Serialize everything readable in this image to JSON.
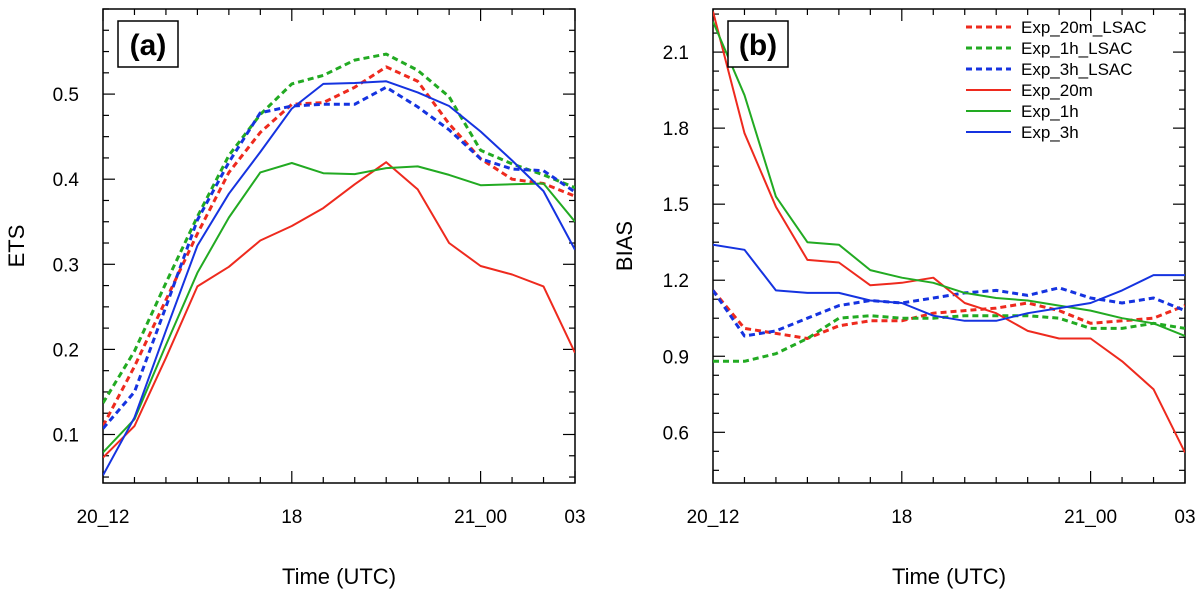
{
  "chart_data": [
    {
      "type": "line",
      "panel_label": "(a)",
      "xlabel": "Time (UTC)",
      "ylabel": "ETS",
      "x_tick_labels": [
        "20_12",
        "18",
        "21_00",
        "03"
      ],
      "x": [
        0,
        1,
        2,
        3,
        4,
        5,
        6,
        7,
        8,
        9,
        10,
        11,
        12,
        13,
        14,
        15
      ],
      "xlim": [
        0,
        15
      ],
      "ylim": [
        0.043,
        0.6
      ],
      "yticks": [
        0.1,
        0.2,
        0.3,
        0.4,
        0.5
      ],
      "y_tick_labels": [
        "0.1",
        "0.2",
        "0.3",
        "0.4",
        "0.5"
      ],
      "series": [
        {
          "name": "Exp_20m_LSAC",
          "color": "#ee2a1e",
          "dash": true,
          "values": [
            0.11,
            0.18,
            0.258,
            0.336,
            0.408,
            0.455,
            0.488,
            0.49,
            0.508,
            0.532,
            0.515,
            0.465,
            0.424,
            0.4,
            0.395,
            0.38
          ]
        },
        {
          "name": "Exp_1h_LSAC",
          "color": "#22aa22",
          "dash": true,
          "values": [
            0.137,
            0.198,
            0.278,
            0.356,
            0.428,
            0.476,
            0.512,
            0.522,
            0.54,
            0.547,
            0.528,
            0.497,
            0.434,
            0.418,
            0.405,
            0.39
          ]
        },
        {
          "name": "Exp_3h_LSAC",
          "color": "#1533e0",
          "dash": true,
          "values": [
            0.107,
            0.15,
            0.25,
            0.352,
            0.42,
            0.478,
            0.486,
            0.488,
            0.488,
            0.508,
            0.485,
            0.458,
            0.424,
            0.412,
            0.41,
            0.385
          ]
        },
        {
          "name": "Exp_20m",
          "color": "#ee2a1e",
          "dash": false,
          "values": [
            0.073,
            0.11,
            0.19,
            0.274,
            0.297,
            0.328,
            0.345,
            0.366,
            0.394,
            0.42,
            0.388,
            0.325,
            0.298,
            0.288,
            0.274,
            0.196
          ]
        },
        {
          "name": "Exp_1h",
          "color": "#22aa22",
          "dash": false,
          "values": [
            0.079,
            0.118,
            0.205,
            0.29,
            0.355,
            0.408,
            0.419,
            0.407,
            0.406,
            0.413,
            0.415,
            0.405,
            0.393,
            0.394,
            0.395,
            0.35
          ]
        },
        {
          "name": "Exp_3h",
          "color": "#1533e0",
          "dash": false,
          "values": [
            0.052,
            0.12,
            0.222,
            0.322,
            0.383,
            0.432,
            0.483,
            0.512,
            0.513,
            0.515,
            0.502,
            0.486,
            0.456,
            0.422,
            0.386,
            0.317
          ]
        }
      ]
    },
    {
      "type": "line",
      "panel_label": "(b)",
      "xlabel": "Time (UTC)",
      "ylabel": "BIAS",
      "x_tick_labels": [
        "20_12",
        "18",
        "21_00",
        "03"
      ],
      "x": [
        0,
        1,
        2,
        3,
        4,
        5,
        6,
        7,
        8,
        9,
        10,
        11,
        12,
        13,
        14,
        15
      ],
      "xlim": [
        0,
        15
      ],
      "ylim": [
        0.4,
        2.27
      ],
      "yticks": [
        0.6,
        0.9,
        1.2,
        1.5,
        1.8,
        2.1
      ],
      "y_tick_labels": [
        "0.6",
        "0.9",
        "1.2",
        "1.5",
        "1.8",
        "2.1"
      ],
      "legend": [
        "Exp_20m_LSAC",
        "Exp_1h_LSAC",
        "Exp_3h_LSAC",
        "Exp_20m",
        "Exp_1h",
        "Exp_3h"
      ],
      "legend_position": "top-right",
      "series": [
        {
          "name": "Exp_20m_LSAC",
          "color": "#ee2a1e",
          "dash": true,
          "values": [
            1.16,
            1.01,
            0.99,
            0.97,
            1.02,
            1.04,
            1.04,
            1.07,
            1.08,
            1.09,
            1.11,
            1.08,
            1.03,
            1.04,
            1.05,
            1.1
          ]
        },
        {
          "name": "Exp_1h_LSAC",
          "color": "#22aa22",
          "dash": true,
          "values": [
            0.88,
            0.88,
            0.91,
            0.97,
            1.05,
            1.06,
            1.05,
            1.05,
            1.06,
            1.06,
            1.06,
            1.05,
            1.01,
            1.01,
            1.03,
            1.01
          ]
        },
        {
          "name": "Exp_3h_LSAC",
          "color": "#1533e0",
          "dash": true,
          "values": [
            1.16,
            0.98,
            1.0,
            1.05,
            1.1,
            1.12,
            1.11,
            1.13,
            1.15,
            1.16,
            1.14,
            1.17,
            1.13,
            1.11,
            1.13,
            1.08
          ]
        },
        {
          "name": "Exp_20m",
          "color": "#ee2a1e",
          "dash": false,
          "values": [
            2.26,
            1.78,
            1.49,
            1.28,
            1.27,
            1.18,
            1.19,
            1.21,
            1.11,
            1.07,
            1.0,
            0.97,
            0.97,
            0.88,
            0.77,
            0.52
          ]
        },
        {
          "name": "Exp_1h",
          "color": "#22aa22",
          "dash": false,
          "values": [
            2.22,
            1.93,
            1.53,
            1.35,
            1.34,
            1.24,
            1.21,
            1.19,
            1.15,
            1.13,
            1.12,
            1.1,
            1.08,
            1.05,
            1.03,
            0.98
          ]
        },
        {
          "name": "Exp_3h",
          "color": "#1533e0",
          "dash": false,
          "values": [
            1.34,
            1.32,
            1.16,
            1.15,
            1.15,
            1.12,
            1.11,
            1.06,
            1.04,
            1.04,
            1.07,
            1.09,
            1.11,
            1.16,
            1.22,
            1.22
          ]
        }
      ]
    }
  ]
}
